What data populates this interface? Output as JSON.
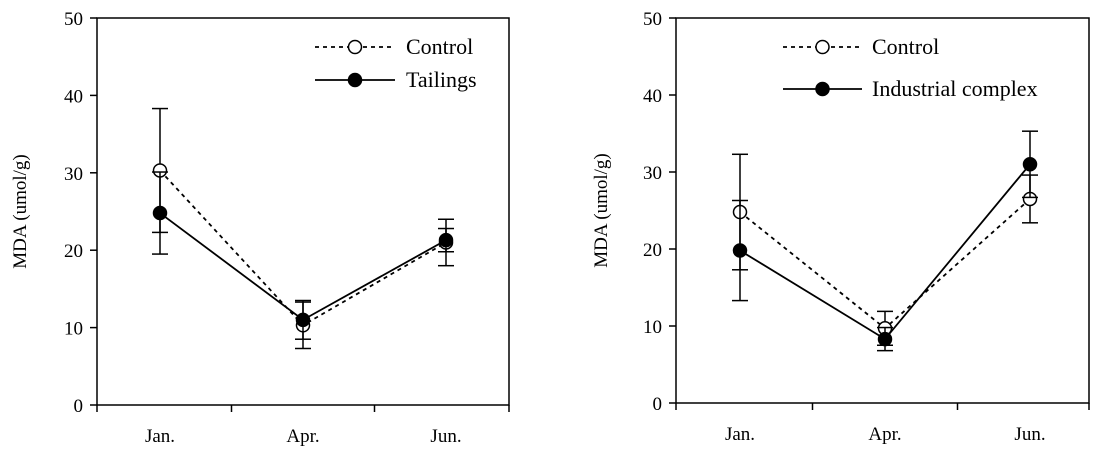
{
  "chart_data": [
    {
      "type": "line",
      "ylabel": "MDA (umol/g)",
      "xlabel": "",
      "title": "",
      "categories": [
        "Jan.",
        "Apr.",
        "Jun."
      ],
      "ylim": [
        0,
        50
      ],
      "yticks": [
        0,
        10,
        20,
        30,
        40,
        50
      ],
      "grid": false,
      "legend_position": "top-right",
      "series": [
        {
          "name": "Control",
          "style": "dotted",
          "marker": "open-circle",
          "values": [
            30.3,
            10.3,
            21.0
          ],
          "errors": [
            8.0,
            3.0,
            3.0
          ]
        },
        {
          "name": "Tailings",
          "style": "solid",
          "marker": "filled-circle",
          "values": [
            24.8,
            11.0,
            21.3
          ],
          "errors": [
            5.3,
            2.5,
            1.5
          ]
        }
      ]
    },
    {
      "type": "line",
      "ylabel": "MDA (umol/g)",
      "xlabel": "",
      "title": "",
      "categories": [
        "Jan.",
        "Apr.",
        "Jun."
      ],
      "ylim": [
        0,
        50
      ],
      "yticks": [
        0,
        10,
        20,
        30,
        40,
        50
      ],
      "grid": false,
      "legend_position": "top-right",
      "series": [
        {
          "name": "Control",
          "style": "dotted",
          "marker": "open-circle",
          "values": [
            24.8,
            9.7,
            26.5
          ],
          "errors": [
            7.5,
            2.2,
            3.1
          ]
        },
        {
          "name": "Industrial complex",
          "style": "solid",
          "marker": "filled-circle",
          "values": [
            19.8,
            8.3,
            31.0
          ],
          "errors": [
            6.5,
            1.5,
            4.3
          ]
        }
      ]
    }
  ],
  "colors": {
    "axis": "#000000",
    "line": "#000000",
    "open_marker_fill": "#ffffff"
  }
}
